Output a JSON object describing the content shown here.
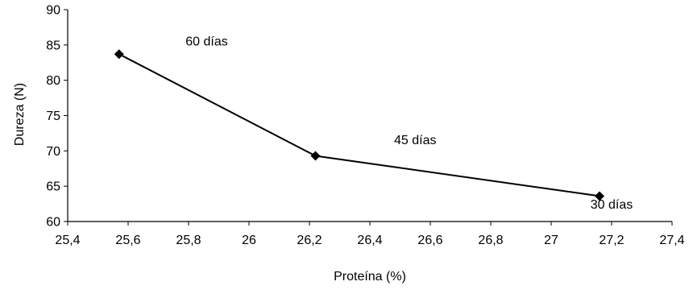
{
  "chart_data": {
    "type": "scatter",
    "title": "",
    "xlabel": "Proteína  (%)",
    "ylabel": "Dureza (N)",
    "xlim": [
      25.4,
      27.4
    ],
    "ylim": [
      60,
      90
    ],
    "x_ticks": [
      25.4,
      25.6,
      25.8,
      26.0,
      26.2,
      26.4,
      26.6,
      26.8,
      27.0,
      27.2,
      27.4
    ],
    "x_tick_labels": [
      "25,4",
      "25,6",
      "25,8",
      "26",
      "26,2",
      "26,4",
      "26,6",
      "26,8",
      "27",
      "27,2",
      "27,4"
    ],
    "y_ticks": [
      60,
      65,
      70,
      75,
      80,
      85,
      90
    ],
    "y_tick_labels": [
      "60",
      "65",
      "70",
      "75",
      "80",
      "85",
      "90"
    ],
    "grid": false,
    "legend": "none",
    "series": [
      {
        "x": [
          25.57,
          26.22,
          27.16
        ],
        "y": [
          83.7,
          69.3,
          63.6
        ],
        "marker": "diamond",
        "line": true,
        "color": "#000000"
      }
    ],
    "annotations": [
      {
        "text": "60 días",
        "x": 25.86,
        "y": 85.5
      },
      {
        "text": "45 días",
        "x": 26.55,
        "y": 71.5
      },
      {
        "text": "30 días",
        "x": 27.2,
        "y": 62.4
      }
    ]
  }
}
